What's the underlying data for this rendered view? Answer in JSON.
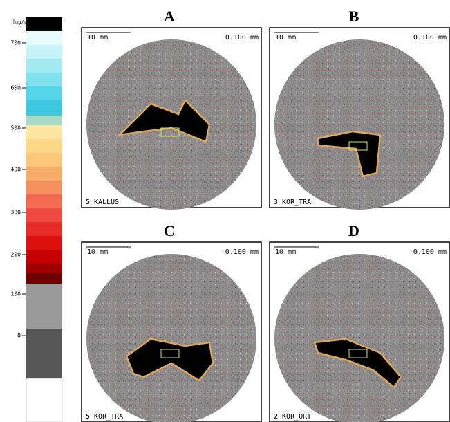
{
  "colorbar": {
    "unit": "[mg/ccm",
    "ticks": [
      "700",
      "600",
      "500",
      "400",
      "300",
      "200",
      "100",
      "0"
    ]
  },
  "panels": [
    {
      "letter": "A",
      "scale_bar": "10 mm",
      "pixel_size": "0.100 mm",
      "caption": "5 KALLUS"
    },
    {
      "letter": "B",
      "scale_bar": "10 mm",
      "pixel_size": "0.100 mm",
      "caption": "3 KOR_TRA"
    },
    {
      "letter": "C",
      "scale_bar": "10 mm",
      "pixel_size": "0.100 mm",
      "caption": "5 KOR_TRA"
    },
    {
      "letter": "D",
      "scale_bar": "10 mm",
      "pixel_size": "0.100 mm",
      "caption": "2 KOR_ORT"
    }
  ]
}
